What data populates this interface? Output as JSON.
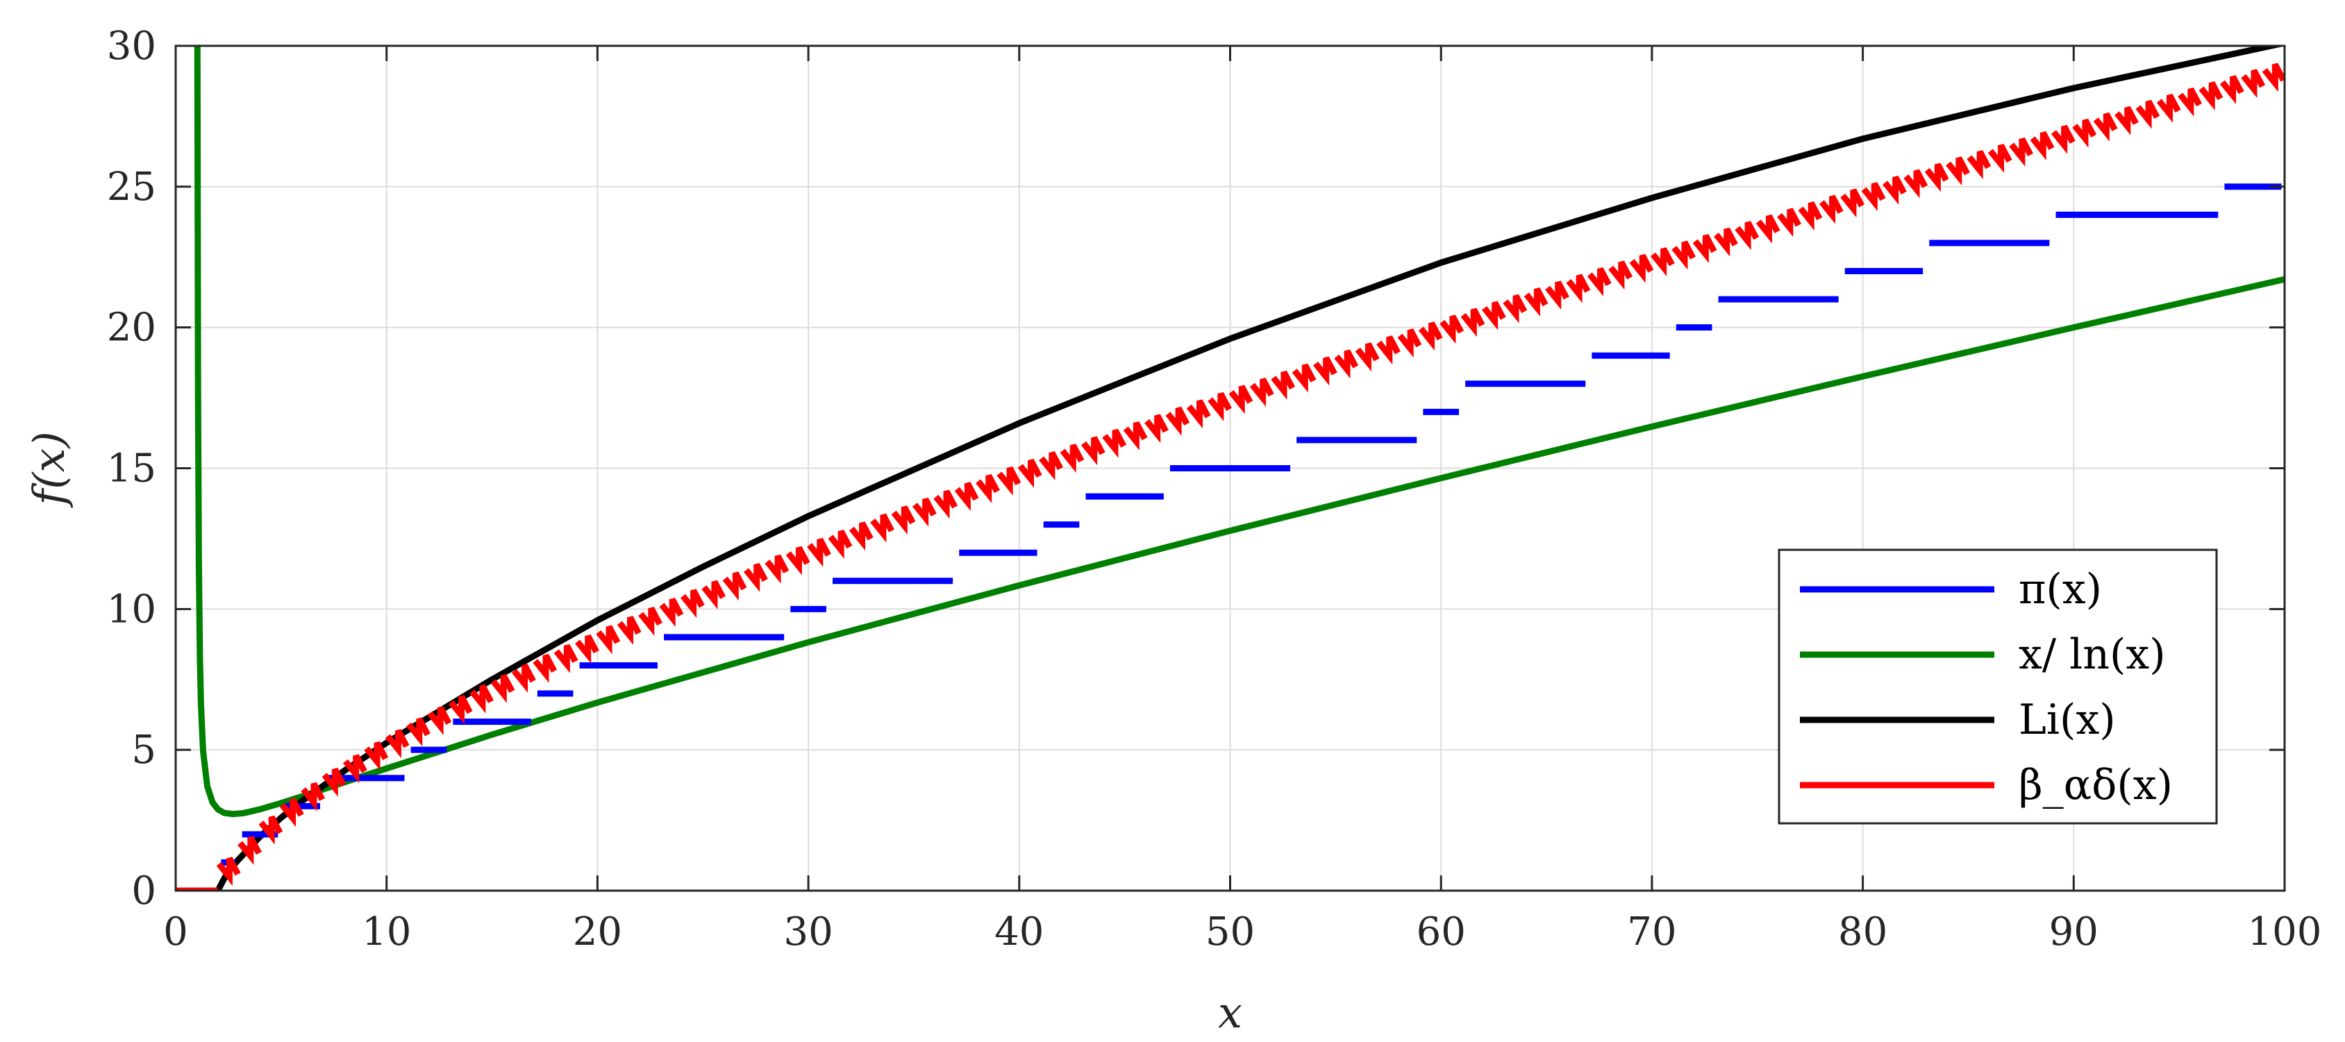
{
  "chart_data": {
    "type": "line",
    "xlabel": "x",
    "ylabel": "f(x)",
    "xlim": [
      0,
      100
    ],
    "ylim": [
      0,
      30
    ],
    "xticks": [
      "0",
      "10",
      "20",
      "30",
      "40",
      "50",
      "60",
      "70",
      "80",
      "90",
      "100"
    ],
    "yticks": [
      "0",
      "5",
      "10",
      "15",
      "20",
      "25",
      "30"
    ],
    "grid": true,
    "legend_position": "bottom-right",
    "colors": {
      "pi": "#0000ff",
      "x_over_ln": "#008000",
      "li": "#000000",
      "beta": "#ff0000"
    },
    "series": [
      {
        "name": "π(x)",
        "style": "step",
        "primes": [
          2,
          3,
          5,
          7,
          11,
          13,
          17,
          19,
          23,
          29,
          31,
          37,
          41,
          43,
          47,
          53,
          59,
          61,
          67,
          71,
          73,
          79,
          83,
          89,
          97
        ],
        "x_range": [
          2,
          100
        ]
      },
      {
        "name": "x/ ln(x)",
        "style": "line",
        "x": [
          1.0,
          1.03,
          1.06,
          1.1,
          1.15,
          1.2,
          1.3,
          1.5,
          1.75,
          2,
          2.3,
          2.72,
          3.2,
          4,
          5,
          6,
          8,
          10,
          15,
          20,
          30,
          40,
          50,
          60,
          70,
          80,
          90,
          100
        ],
        "y": [
          30,
          30,
          17.7,
          11.54,
          8.23,
          6.58,
          4.95,
          3.7,
          3.13,
          2.89,
          2.76,
          2.72,
          2.75,
          2.89,
          3.11,
          3.35,
          3.85,
          4.34,
          5.54,
          6.68,
          8.82,
          10.84,
          12.78,
          14.65,
          16.48,
          18.26,
          20.0,
          21.71
        ]
      },
      {
        "name": "Li(x)",
        "style": "line",
        "x": [
          2.0,
          2.3,
          2.6,
          3,
          4,
          5,
          6,
          8,
          10,
          15,
          20,
          25,
          30,
          40,
          50,
          60,
          70,
          80,
          90,
          100
        ],
        "y": [
          0,
          0.43,
          0.79,
          1.12,
          1.92,
          2.59,
          3.19,
          4.26,
          5.25,
          7.5,
          9.6,
          11.5,
          13.3,
          16.6,
          19.6,
          22.3,
          24.6,
          26.7,
          28.5,
          30.1
        ]
      },
      {
        "name": "β_αδ(x)",
        "style": "sawtooth",
        "x_range": [
          0,
          100
        ],
        "segment_step": 1,
        "tooth_drop": 0.7
      }
    ]
  }
}
